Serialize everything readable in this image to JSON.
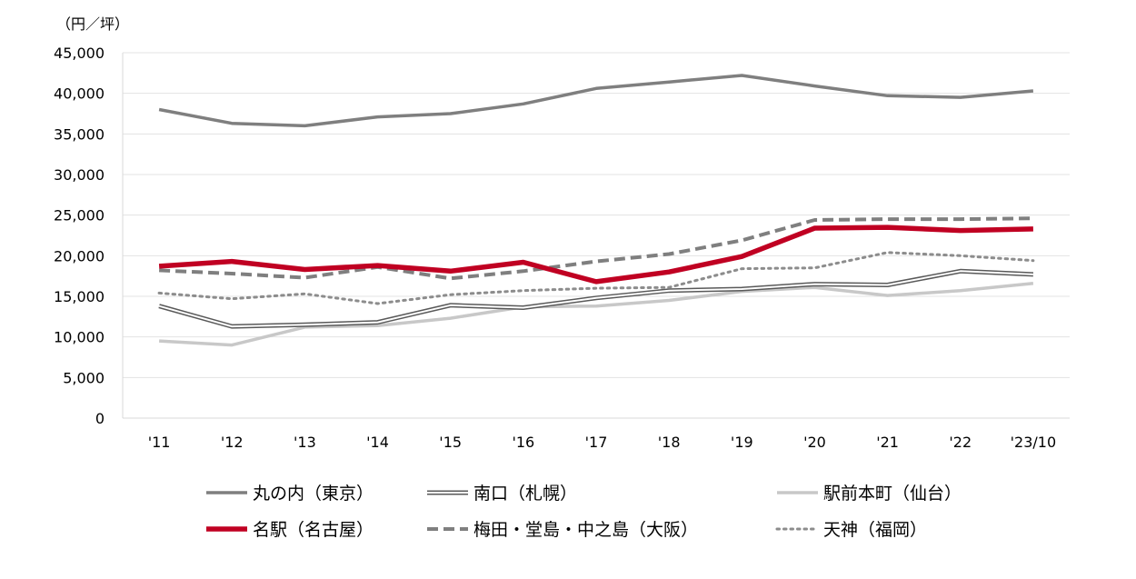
{
  "chart_data": {
    "type": "line",
    "unit_label": "（円／坪）",
    "categories": [
      "'11",
      "'12",
      "'13",
      "'14",
      "'15",
      "'16",
      "'17",
      "'18",
      "'19",
      "'20",
      "'21",
      "'22",
      "'23/10"
    ],
    "ylim": [
      0,
      45000
    ],
    "yticks": [
      0,
      5000,
      10000,
      15000,
      20000,
      25000,
      30000,
      35000,
      40000,
      45000
    ],
    "ytick_labels": [
      "0",
      "5,000",
      "10,000",
      "15,000",
      "20,000",
      "25,000",
      "30,000",
      "35,000",
      "40,000",
      "45,000"
    ],
    "grid": true,
    "legend_position": "bottom",
    "series": [
      {
        "name": "丸の内（東京）",
        "style": "solid-thick",
        "color": "#7f7f7f",
        "values": [
          38000,
          36300,
          36000,
          37100,
          37500,
          38700,
          40600,
          41400,
          42200,
          40900,
          39700,
          39500,
          40300
        ]
      },
      {
        "name": "南口（札幌）",
        "style": "double",
        "color": "#595959",
        "values": [
          13800,
          11300,
          11500,
          11800,
          13900,
          13600,
          14800,
          15700,
          15900,
          16500,
          16400,
          18100,
          17700
        ]
      },
      {
        "name": "駅前本町（仙台）",
        "style": "solid-light",
        "color": "#c8c8c8",
        "values": [
          9500,
          9000,
          11200,
          11400,
          12300,
          13700,
          13800,
          14500,
          15600,
          16100,
          15100,
          15700,
          16600
        ]
      },
      {
        "name": "名駅（名古屋）",
        "style": "solid-red",
        "color": "#c00022",
        "values": [
          18700,
          19300,
          18300,
          18800,
          18100,
          19200,
          16800,
          18000,
          19900,
          23400,
          23500,
          23100,
          23300
        ]
      },
      {
        "name": "梅田・堂島・中之島（大阪）",
        "style": "dashed",
        "color": "#7f7f7f",
        "values": [
          18200,
          17800,
          17300,
          18600,
          17200,
          18100,
          19300,
          20200,
          21900,
          24400,
          24500,
          24500,
          24600
        ]
      },
      {
        "name": "天神（福岡）",
        "style": "dotted",
        "color": "#8c8c8c",
        "values": [
          15400,
          14700,
          15300,
          14100,
          15200,
          15700,
          16000,
          16100,
          18400,
          18500,
          20400,
          20000,
          19400
        ]
      }
    ]
  }
}
